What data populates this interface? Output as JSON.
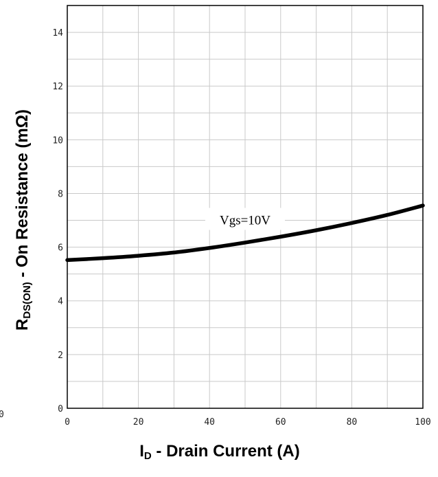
{
  "chart_data": {
    "type": "line",
    "xlabel": {
      "main": "I",
      "sub": "D",
      "rest": " - Drain Current (A)"
    },
    "ylabel": {
      "main": "R",
      "sub": "DS(ON)",
      "rest": " - On Resistance (mΩ)"
    },
    "xlim": [
      0,
      100
    ],
    "ylim": [
      0,
      15
    ],
    "xticks": [
      0,
      20,
      40,
      60,
      80,
      100
    ],
    "yticks": [
      0,
      2,
      4,
      6,
      8,
      10,
      12,
      14
    ],
    "grid": true,
    "series": [
      {
        "name": "Vgs=10V",
        "x": [
          0,
          10,
          20,
          30,
          40,
          50,
          60,
          70,
          80,
          90,
          100
        ],
        "y": [
          5.52,
          5.59,
          5.68,
          5.8,
          5.97,
          6.17,
          6.39,
          6.63,
          6.9,
          7.2,
          7.55
        ]
      }
    ],
    "annotations": [
      {
        "text": "Vgs=10V",
        "x": 50,
        "y": 7.0
      }
    ],
    "edge_text": "0"
  }
}
